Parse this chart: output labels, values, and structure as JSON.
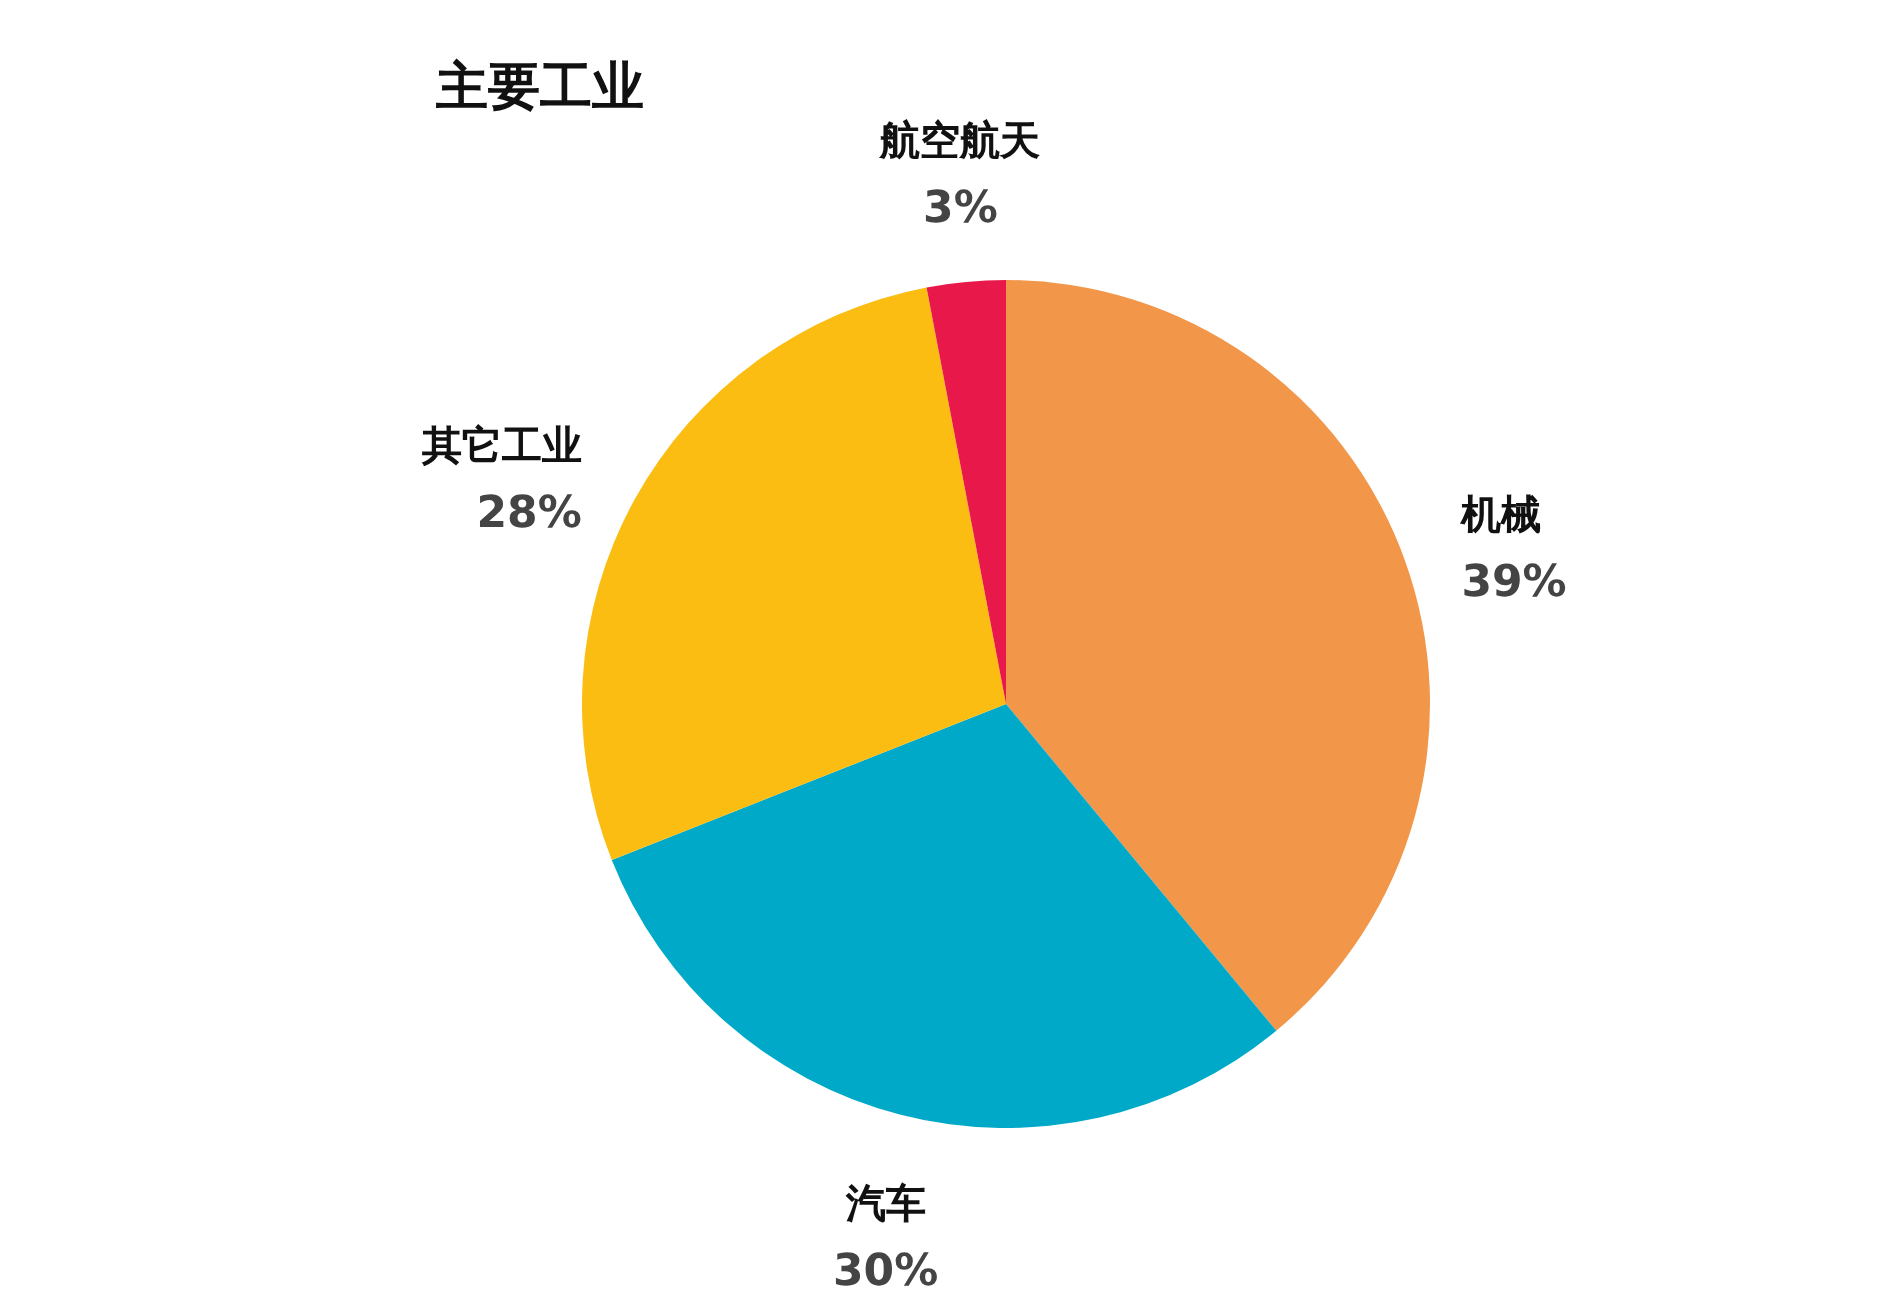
{
  "chart_data": {
    "type": "pie",
    "title": "主要工业",
    "categories": [
      "机械",
      "汽车",
      "其它工业",
      "航空航天"
    ],
    "values": [
      39,
      30,
      28,
      3
    ],
    "value_labels": [
      "39%",
      "30%",
      "28%",
      "3%"
    ],
    "colors": [
      "#f2964a",
      "#00a9c8",
      "#fbbd12",
      "#e8194a"
    ]
  }
}
